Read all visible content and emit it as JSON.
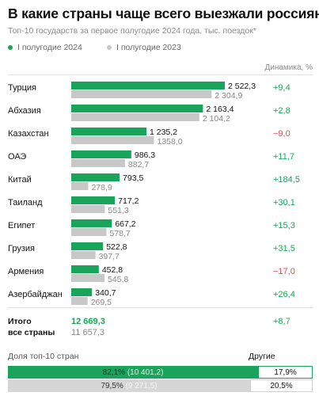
{
  "header": {
    "title": "В какие страны чаще всего выезжали россияне",
    "subtitle": "Топ-10 государств за первое полугодие 2024 года, тыс. поездок*"
  },
  "legend": {
    "s2024": "I полугодие 2024",
    "s2023": "I полугодие 2023"
  },
  "dynamics_header": "Динамика, %",
  "colors": {
    "green": "#1aa35a",
    "gray": "#c8c8c8",
    "positive": "#1aa35a",
    "negative": "#d9534f",
    "share_green_bg": "#1aa35a",
    "share_gray_bg": "#d6d6d6"
  },
  "chart_data": {
    "type": "bar",
    "orientation": "horizontal",
    "categories": [
      "Турция",
      "Абхазия",
      "Казахстан",
      "ОАЭ",
      "Китай",
      "Таиланд",
      "Египет",
      "Грузия",
      "Армения",
      "Азербайджан"
    ],
    "series": [
      {
        "name": "I полугодие 2024",
        "values": [
          2522.3,
          2163.4,
          1235.2,
          986.3,
          793.5,
          717.2,
          667.2,
          522.8,
          452.8,
          340.7
        ],
        "labels": [
          "2 522,3",
          "2 163,4",
          "1 235,2",
          "986,3",
          "793,5",
          "717,2",
          "667,2",
          "522,8",
          "452,8",
          "340,7"
        ]
      },
      {
        "name": "I полугодие 2023",
        "values": [
          2304.9,
          2104.2,
          1358.0,
          882.7,
          278.9,
          551.3,
          578.7,
          397.7,
          545.8,
          269.5
        ],
        "labels": [
          "2 304,9",
          "2 104,2",
          "1358,0",
          "882,7",
          "278,9",
          "551,3",
          "578,7",
          "397,7",
          "545,8",
          "269,5"
        ]
      }
    ],
    "dynamics": [
      "+9,4",
      "+2,8",
      "−9,0",
      "+11,7",
      "+184,5",
      "+30,1",
      "+15,3",
      "+31,5",
      "−17,0",
      "+26,4"
    ],
    "total": {
      "label_line1": "Итого",
      "label_line2": "все страны",
      "value_2024": "12 669,3",
      "value_2023": "11 657,3",
      "dynamics": "+8,7"
    }
  },
  "share": {
    "title": "Доля топ-10 стран",
    "other_label": "Другие",
    "rows": [
      {
        "share": 82.1,
        "label": "82,1%",
        "abs": "(10 401,2)",
        "other": "17,9%"
      },
      {
        "share": 79.5,
        "label": "79,5%",
        "abs": "(9 271,5)",
        "other": "20,5%"
      }
    ]
  }
}
